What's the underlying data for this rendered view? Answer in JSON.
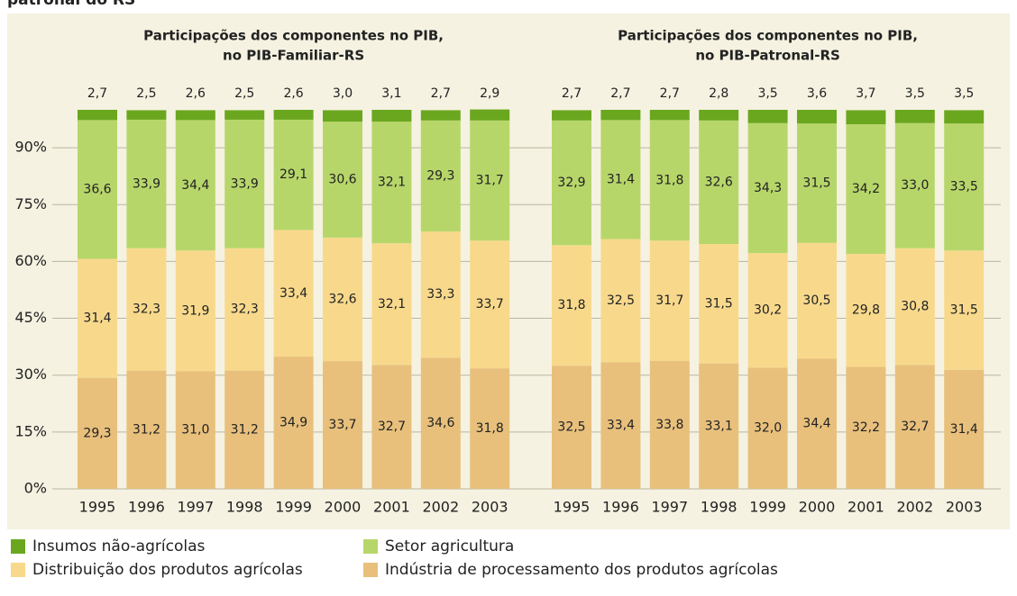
{
  "caption": "patronal do RS",
  "chart_data": [
    {
      "type": "bar",
      "stacked": true,
      "title": [
        "Participações dos componentes no PIB,",
        "no PIB-Familiar-RS"
      ],
      "categories": [
        "1995",
        "1996",
        "1997",
        "1998",
        "1999",
        "2000",
        "2001",
        "2002",
        "2003"
      ],
      "ylim": [
        0,
        100
      ],
      "yticks": [
        {
          "value": 0,
          "label": "0%"
        },
        {
          "value": 15,
          "label": "15%"
        },
        {
          "value": 30,
          "label": "30%"
        },
        {
          "value": 45,
          "label": "45%"
        },
        {
          "value": 60,
          "label": "60%"
        },
        {
          "value": 75,
          "label": "75%"
        },
        {
          "value": 90,
          "label": "90%"
        }
      ],
      "grid": true,
      "series": [
        {
          "name": "Indústria de processamento dos produtos agrícolas",
          "color": "#e8c07c",
          "values": [
            29.3,
            31.2,
            31.0,
            31.2,
            34.9,
            33.7,
            32.7,
            34.6,
            31.8
          ],
          "value_labels": [
            "29,3",
            "31,2",
            "31,0",
            "31,2",
            "34,9",
            "33,7",
            "32,7",
            "34,6",
            "31,8"
          ]
        },
        {
          "name": "Distribuição dos produtos agrícolas",
          "color": "#f8d98c",
          "values": [
            31.4,
            32.3,
            31.9,
            32.3,
            33.4,
            32.6,
            32.1,
            33.3,
            33.7
          ],
          "value_labels": [
            "31,4",
            "32,3",
            "31,9",
            "32,3",
            "33,4",
            "32,6",
            "32,1",
            "33,3",
            "33,7"
          ]
        },
        {
          "name": "Setor agricultura",
          "color": "#b7d66a",
          "values": [
            36.6,
            33.9,
            34.4,
            33.9,
            29.1,
            30.6,
            32.1,
            29.3,
            31.7
          ],
          "value_labels": [
            "36,6",
            "33,9",
            "34,4",
            "33,9",
            "29,1",
            "30,6",
            "32,1",
            "29,3",
            "31,7"
          ]
        },
        {
          "name": "Insumos não-agrícolas",
          "color": "#6aa71f",
          "values": [
            2.7,
            2.5,
            2.6,
            2.5,
            2.6,
            3.0,
            3.1,
            2.7,
            2.9
          ],
          "value_labels": [
            "2,7",
            "2,5",
            "2,6",
            "2,5",
            "2,6",
            "3,0",
            "3,1",
            "2,7",
            "2,9"
          ]
        }
      ]
    },
    {
      "type": "bar",
      "stacked": true,
      "title": [
        "Participações dos componentes no PIB,",
        "no PIB-Patronal-RS"
      ],
      "categories": [
        "1995",
        "1996",
        "1997",
        "1998",
        "1999",
        "2000",
        "2001",
        "2002",
        "2003"
      ],
      "ylim": [
        0,
        100
      ],
      "series": [
        {
          "color": "#e8c07c",
          "values": [
            32.5,
            33.4,
            33.8,
            33.1,
            32.0,
            34.4,
            32.2,
            32.7,
            31.4
          ],
          "value_labels": [
            "32,5",
            "33,4",
            "33,8",
            "33,1",
            "32,0",
            "34,4",
            "32,2",
            "32,7",
            "31,4"
          ]
        },
        {
          "color": "#f8d98c",
          "values": [
            31.8,
            32.5,
            31.7,
            31.5,
            30.2,
            30.5,
            29.8,
            30.8,
            31.5
          ],
          "value_labels": [
            "31,8",
            "32,5",
            "31,7",
            "31,5",
            "30,2",
            "30,5",
            "29,8",
            "30,8",
            "31,5"
          ]
        },
        {
          "color": "#b7d66a",
          "values": [
            32.9,
            31.4,
            31.8,
            32.6,
            34.3,
            31.5,
            34.2,
            33.0,
            33.5
          ],
          "value_labels": [
            "32,9",
            "31,4",
            "31,8",
            "32,6",
            "34,3",
            "31,5",
            "34,2",
            "33,0",
            "33,5"
          ]
        },
        {
          "color": "#6aa71f",
          "values": [
            2.7,
            2.7,
            2.7,
            2.8,
            3.5,
            3.6,
            3.7,
            3.5,
            3.5
          ],
          "value_labels": [
            "2,7",
            "2,7",
            "2,7",
            "2,8",
            "3,5",
            "3,6",
            "3,7",
            "3,5",
            "3,5"
          ]
        }
      ]
    }
  ]
}
